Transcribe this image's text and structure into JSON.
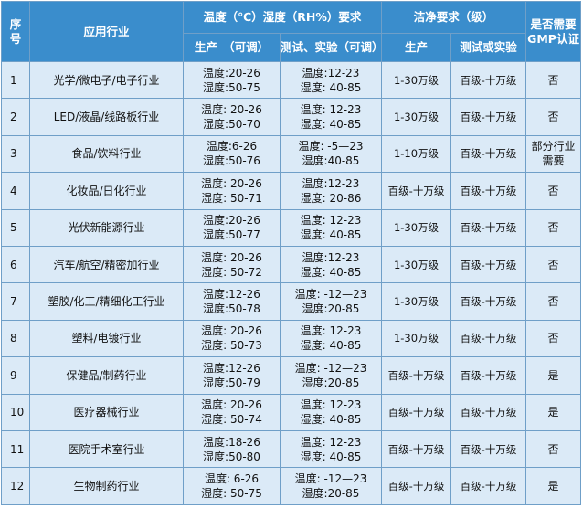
{
  "header": {
    "col_index": "序号",
    "col_industry": "应用行业",
    "group_temp_humidity": "温度（℃）湿度（RH%）要求",
    "group_cleanliness": "洁净要求（级）",
    "col_gmp": "是否需要GMP认证",
    "sub_production_adjustable": "生产　（可调）",
    "sub_test_adjustable": "测试、实验（可调）",
    "sub_production": "生产",
    "sub_test": "测试或实验"
  },
  "rows": [
    {
      "index": "1",
      "industry": "光学/微电子/电子行业",
      "prod_temp": "温度:20-26",
      "prod_hum": "湿度:50-75",
      "test_temp": "温度:12-23",
      "test_hum": "湿度: 40-85",
      "clean_prod": "1-30万级",
      "clean_test": "百级-十万级",
      "gmp": "否"
    },
    {
      "index": "2",
      "industry": "LED/液晶/线路板行业",
      "prod_temp": "温度: 20-26",
      "prod_hum": "湿度:50-70",
      "test_temp": "温度: 12-23",
      "test_hum": "湿度: 40-85",
      "clean_prod": "1-30万级",
      "clean_test": "百级-十万级",
      "gmp": "否"
    },
    {
      "index": "3",
      "industry": "食品/饮料行业",
      "prod_temp": "温度:6-26",
      "prod_hum": "湿度:50-76",
      "test_temp": "温度: -5—23",
      "test_hum": "湿度:40-85",
      "clean_prod": "1-10万级",
      "clean_test": "百级-十万级",
      "gmp": "部分行业需要"
    },
    {
      "index": "4",
      "industry": "化妆品/日化行业",
      "prod_temp": "温度: 20-26",
      "prod_hum": "湿度: 50-71",
      "test_temp": "温度:12-23",
      "test_hum": "湿度: 20-86",
      "clean_prod": "百级-十万级",
      "clean_test": "百级-十万级",
      "gmp": "否"
    },
    {
      "index": "5",
      "industry": "光伏新能源行业",
      "prod_temp": "温度:20-26",
      "prod_hum": "湿度:50-77",
      "test_temp": "温度: 12-23",
      "test_hum": "湿度: 40-85",
      "clean_prod": "1-30万级",
      "clean_test": "百级-十万级",
      "gmp": "否"
    },
    {
      "index": "6",
      "industry": "汽车/航空/精密加行业",
      "prod_temp": "温度: 20-26",
      "prod_hum": "湿度: 50-72",
      "test_temp": "温度:12-23",
      "test_hum": "湿度: 40-85",
      "clean_prod": "1-30万级",
      "clean_test": "百级-十万级",
      "gmp": "否"
    },
    {
      "index": "7",
      "industry": "塑胶/化工/精细化工行业",
      "prod_temp": "温度:12-26",
      "prod_hum": "湿度:50-78",
      "test_temp": "温度: -12—23",
      "test_hum": "湿度:20-85",
      "clean_prod": "1-30万级",
      "clean_test": "百级-十万级",
      "gmp": "否"
    },
    {
      "index": "8",
      "industry": "塑料/电镀行业",
      "prod_temp": "温度: 20-26",
      "prod_hum": "湿度: 50-73",
      "test_temp": "温度: 12-23",
      "test_hum": "湿度: 40-85",
      "clean_prod": "1-30万级",
      "clean_test": "百级-十万级",
      "gmp": "否"
    },
    {
      "index": "9",
      "industry": "保健品/制药行业",
      "prod_temp": "温度:12-26",
      "prod_hum": "湿度:50-79",
      "test_temp": "温度: -12—23",
      "test_hum": "湿度:20-85",
      "clean_prod": "百级-十万级",
      "clean_test": "百级-十万级",
      "gmp": "是"
    },
    {
      "index": "10",
      "industry": "医疗器械行业",
      "prod_temp": "温度: 20-26",
      "prod_hum": "湿度: 50-74",
      "test_temp": "温度: 12-23",
      "test_hum": "湿度: 40-85",
      "clean_prod": "百级-十万级",
      "clean_test": "百级-十万级",
      "gmp": "是"
    },
    {
      "index": "11",
      "industry": "医院手术室行业",
      "prod_temp": "温度:18-26",
      "prod_hum": "湿度:50-80",
      "test_temp": "温度: 12-23",
      "test_hum": "湿度: 40-85",
      "clean_prod": "百级-十万级",
      "clean_test": "百级-十万级",
      "gmp": "否"
    },
    {
      "index": "12",
      "industry": "生物制药行业",
      "prod_temp": "温度: 6-26",
      "prod_hum": "湿度: 50-75",
      "test_temp": "温度: -12—23",
      "test_hum": "湿度:20-85",
      "clean_prod": "百级-十万级",
      "clean_test": "百级-十万级",
      "gmp": "是"
    }
  ],
  "colors": {
    "header_bg": "#3a8dcc",
    "row_bg": "#dbeaf7",
    "border": "#6f9fc8"
  }
}
